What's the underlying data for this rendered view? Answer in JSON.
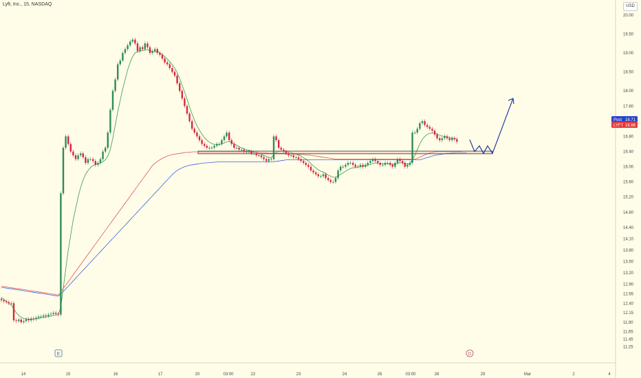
{
  "header": {
    "title": "Lyft, Inc., 15, NASDAQ",
    "currency": "USD"
  },
  "markers": {
    "earnings": "E",
    "dividend": "D"
  },
  "colors": {
    "background": "#fffde8",
    "up": "#2e8b57",
    "down": "#d7263d",
    "sma_green": "#3a9a48",
    "ma_red": "#e05050",
    "ma_blue": "#3f5fe0",
    "arrow": "#1f3aa0",
    "post_badge": "#2a42c8",
    "last_badge": "#e03b3b"
  },
  "chart_data": {
    "type": "candlestick",
    "symbol": "LYFT",
    "exchange": "NASDAQ",
    "interval": "15",
    "ylim": [
      11.1,
      20.25
    ],
    "yticks": [
      "20.00",
      "19.50",
      "19.00",
      "18.50",
      "18.00",
      "17.60",
      "17.20",
      "16.80",
      "16.40",
      "16.00",
      "15.60",
      "15.20",
      "14.80",
      "14.40",
      "14.10",
      "13.80",
      "13.50",
      "13.20",
      "12.90",
      "12.65",
      "12.40",
      "12.15",
      "11.90",
      "11.65",
      "11.45",
      "11.25"
    ],
    "xticks": [
      "14",
      "15",
      "16",
      "17",
      "20",
      "03:00",
      "22",
      "23",
      "24",
      "26",
      "03:00",
      "28",
      "29",
      "Mar",
      "2",
      "4"
    ],
    "closes": [
      12.48,
      12.45,
      12.43,
      12.4,
      12.4,
      11.95,
      11.93,
      11.97,
      11.9,
      11.93,
      11.98,
      11.95,
      12.0,
      11.98,
      12.02,
      12.05,
      12.05,
      12.08,
      12.06,
      12.1,
      12.12,
      12.15,
      12.12,
      12.1,
      15.3,
      16.5,
      16.8,
      16.6,
      16.4,
      16.3,
      16.2,
      16.3,
      16.35,
      16.25,
      16.1,
      16.2,
      16.2,
      16.15,
      16.05,
      16.1,
      16.2,
      16.4,
      16.5,
      16.9,
      17.5,
      18.0,
      18.3,
      18.7,
      18.8,
      19.0,
      19.1,
      19.2,
      19.3,
      19.35,
      19.25,
      19.05,
      19.15,
      19.1,
      19.25,
      19.15,
      19.0,
      19.05,
      19.1,
      19.0,
      18.95,
      18.85,
      18.75,
      18.7,
      18.6,
      18.5,
      18.4,
      18.2,
      18.0,
      17.8,
      17.6,
      17.4,
      17.2,
      17.0,
      16.9,
      16.8,
      16.7,
      16.6,
      16.55,
      16.5,
      16.5,
      16.5,
      16.55,
      16.6,
      16.6,
      16.7,
      16.8,
      16.9,
      16.7,
      16.6,
      16.5,
      16.5,
      16.45,
      16.45,
      16.4,
      16.4,
      16.4,
      16.35,
      16.35,
      16.3,
      16.3,
      16.25,
      16.2,
      16.15,
      16.2,
      16.2,
      16.8,
      16.7,
      16.5,
      16.45,
      16.4,
      16.35,
      16.3,
      16.3,
      16.25,
      16.25,
      16.2,
      16.15,
      16.1,
      16.05,
      16.0,
      15.9,
      15.85,
      15.8,
      15.75,
      15.75,
      15.8,
      15.7,
      15.65,
      15.6,
      15.6,
      15.7,
      15.9,
      16.0,
      16.0,
      16.05,
      16.1,
      16.1,
      16.05,
      16.0,
      16.0,
      16.05,
      16.0,
      16.05,
      16.1,
      16.15,
      16.2,
      16.15,
      16.1,
      16.05,
      16.05,
      16.1,
      16.1,
      16.05,
      16.0,
      16.1,
      16.2,
      16.15,
      16.1,
      16.0,
      16.05,
      16.1,
      16.9,
      16.9,
      17.0,
      17.15,
      17.2,
      17.1,
      17.05,
      17.0,
      16.95,
      16.85,
      16.75,
      16.7,
      16.75,
      16.8,
      16.75,
      16.7,
      16.75,
      16.72,
      16.66
    ],
    "last_price": 16.66,
    "post_price": 16.71,
    "last_label": "LYFT",
    "post_label": "Post",
    "support_zone": [
      16.34,
      16.41
    ],
    "projection": [
      [
        16.71,
        16.4
      ],
      [
        16.4,
        16.55
      ],
      [
        16.55,
        16.35
      ],
      [
        16.35,
        16.55
      ],
      [
        16.55,
        16.35
      ],
      [
        16.35,
        17.8
      ]
    ],
    "indicators": [
      {
        "type": "sma",
        "color": "#3a9a48",
        "values": [
          12.55,
          12.5,
          12.45,
          12.4,
          12.35,
          12.25,
          12.15,
          12.08,
          12.03,
          12.0,
          11.99,
          11.98,
          11.98,
          11.98,
          11.99,
          12.0,
          12.02,
          12.03,
          12.04,
          12.05,
          12.06,
          12.08,
          12.09,
          12.1,
          12.3,
          12.8,
          13.3,
          13.8,
          14.2,
          14.6,
          14.9,
          15.2,
          15.45,
          15.65,
          15.8,
          15.9,
          15.98,
          16.03,
          16.06,
          16.08,
          16.1,
          16.13,
          16.18,
          16.28,
          16.45,
          16.75,
          17.1,
          17.45,
          17.75,
          18.05,
          18.3,
          18.55,
          18.75,
          18.9,
          19.0,
          19.03,
          19.05,
          19.06,
          19.08,
          19.08,
          19.06,
          19.04,
          19.04,
          19.03,
          19.0,
          18.96,
          18.9,
          18.84,
          18.77,
          18.69,
          18.6,
          18.48,
          18.33,
          18.15,
          17.97,
          17.78,
          17.58,
          17.39,
          17.22,
          17.08,
          16.96,
          16.86,
          16.77,
          16.7,
          16.65,
          16.61,
          16.59,
          16.58,
          16.58,
          16.6,
          16.62,
          16.66,
          16.66,
          16.64,
          16.6,
          16.57,
          16.53,
          16.5,
          16.47,
          16.45,
          16.43,
          16.41,
          16.39,
          16.37,
          16.35,
          16.33,
          16.3,
          16.27,
          16.25,
          16.23,
          16.32,
          16.38,
          16.4,
          16.41,
          16.41,
          16.4,
          16.38,
          16.37,
          16.35,
          16.33,
          16.31,
          16.28,
          16.24,
          16.2,
          16.15,
          16.08,
          16.02,
          15.97,
          15.92,
          15.88,
          15.86,
          15.82,
          15.78,
          15.75,
          15.72,
          15.72,
          15.76,
          15.8,
          15.84,
          15.88,
          15.92,
          15.95,
          15.97,
          15.98,
          15.99,
          16.0,
          16.01,
          16.02,
          16.04,
          16.06,
          16.08,
          16.09,
          16.1,
          16.09,
          16.08,
          16.08,
          16.08,
          16.07,
          16.06,
          16.07,
          16.09,
          16.1,
          16.1,
          16.08,
          16.07,
          16.07,
          16.2,
          16.3,
          16.45,
          16.6,
          16.72,
          16.8,
          16.85,
          16.88,
          16.89,
          16.88,
          16.86,
          16.83,
          16.81,
          16.8,
          16.79,
          16.77,
          16.76,
          16.75,
          16.73
        ]
      },
      {
        "type": "ma",
        "color": "#e05050",
        "values": [
          12.85,
          12.84,
          12.83,
          12.82,
          12.81,
          12.8,
          12.79,
          12.78,
          12.77,
          12.76,
          12.75,
          12.74,
          12.73,
          12.72,
          12.71,
          12.7,
          12.69,
          12.68,
          12.67,
          12.66,
          12.65,
          12.64,
          12.63,
          12.62,
          12.7,
          12.79,
          12.88,
          12.97,
          13.06,
          13.15,
          13.24,
          13.33,
          13.42,
          13.51,
          13.6,
          13.69,
          13.78,
          13.87,
          13.96,
          14.05,
          14.14,
          14.23,
          14.32,
          14.41,
          14.5,
          14.59,
          14.68,
          14.77,
          14.86,
          14.95,
          15.04,
          15.13,
          15.22,
          15.31,
          15.4,
          15.49,
          15.58,
          15.67,
          15.76,
          15.85,
          15.94,
          16.03,
          16.09,
          16.14,
          16.18,
          16.22,
          16.25,
          16.28,
          16.3,
          16.32,
          16.33,
          16.34,
          16.35,
          16.36,
          16.37,
          16.38,
          16.38,
          16.39,
          16.39,
          16.39,
          16.39,
          16.39,
          16.39,
          16.39,
          16.39,
          16.39,
          16.39,
          16.39,
          16.39,
          16.39,
          16.39,
          16.39,
          16.39,
          16.39,
          16.39,
          16.39,
          16.39,
          16.39,
          16.39,
          16.39,
          16.39,
          16.38,
          16.38,
          16.38,
          16.37,
          16.37,
          16.36,
          16.36,
          16.35,
          16.35,
          16.35,
          16.35,
          16.35,
          16.35,
          16.35,
          16.34,
          16.34,
          16.34,
          16.33,
          16.33,
          16.33,
          16.32,
          16.32,
          16.31,
          16.31,
          16.3,
          16.29,
          16.28,
          16.27,
          16.26,
          16.25,
          16.24,
          16.23,
          16.22,
          16.21,
          16.2,
          16.2,
          16.2,
          16.2,
          16.2,
          16.2,
          16.2,
          16.2,
          16.2,
          16.2,
          16.2,
          16.2,
          16.2,
          16.2,
          16.2,
          16.2,
          16.2,
          16.2,
          16.2,
          16.2,
          16.2,
          16.2,
          16.2,
          16.2,
          16.2,
          16.2,
          16.2,
          16.2,
          16.2,
          16.2,
          16.2,
          16.2,
          16.2,
          16.22,
          16.25,
          16.28,
          16.31,
          16.34,
          16.36,
          16.38,
          16.39,
          16.4,
          16.4,
          16.4,
          16.4,
          16.4,
          16.4,
          16.4,
          16.4,
          16.4,
          16.4,
          16.4
        ]
      },
      {
        "type": "ma",
        "color": "#3f5fe0",
        "values": [
          12.82,
          12.81,
          12.8,
          12.79,
          12.78,
          12.77,
          12.76,
          12.75,
          12.74,
          12.73,
          12.72,
          12.71,
          12.7,
          12.69,
          12.68,
          12.67,
          12.66,
          12.65,
          12.64,
          12.63,
          12.62,
          12.61,
          12.6,
          12.59,
          12.64,
          12.71,
          12.78,
          12.85,
          12.92,
          12.99,
          13.06,
          13.13,
          13.2,
          13.27,
          13.34,
          13.41,
          13.48,
          13.55,
          13.62,
          13.69,
          13.76,
          13.83,
          13.9,
          13.97,
          14.04,
          14.11,
          14.18,
          14.25,
          14.32,
          14.39,
          14.46,
          14.53,
          14.6,
          14.67,
          14.74,
          14.81,
          14.88,
          14.95,
          15.02,
          15.09,
          15.16,
          15.23,
          15.3,
          15.37,
          15.44,
          15.51,
          15.58,
          15.65,
          15.72,
          15.79,
          15.85,
          15.9,
          15.94,
          15.97,
          16.0,
          16.02,
          16.04,
          16.05,
          16.06,
          16.07,
          16.08,
          16.09,
          16.1,
          16.1,
          16.11,
          16.11,
          16.12,
          16.12,
          16.13,
          16.13,
          16.13,
          16.13,
          16.13,
          16.13,
          16.13,
          16.13,
          16.13,
          16.13,
          16.13,
          16.13,
          16.13,
          16.13,
          16.13,
          16.13,
          16.13,
          16.13,
          16.13,
          16.13,
          16.13,
          16.13,
          16.13,
          16.14,
          16.15,
          16.16,
          16.17,
          16.18,
          16.18,
          16.18,
          16.18,
          16.18,
          16.18,
          16.18,
          16.18,
          16.18,
          16.18,
          16.18,
          16.18,
          16.18,
          16.18,
          16.18,
          16.18,
          16.18,
          16.18,
          16.18,
          16.18,
          16.18,
          16.18,
          16.18,
          16.18,
          16.18,
          16.18,
          16.18,
          16.18,
          16.18,
          16.18,
          16.18,
          16.18,
          16.18,
          16.18,
          16.18,
          16.18,
          16.18,
          16.18,
          16.18,
          16.18,
          16.18,
          16.18,
          16.18,
          16.18,
          16.18,
          16.18,
          16.18,
          16.18,
          16.18,
          16.18,
          16.18,
          16.18,
          16.18,
          16.18,
          16.18,
          16.2,
          16.22,
          16.24,
          16.26,
          16.28,
          16.3,
          16.31,
          16.32,
          16.33,
          16.34,
          16.35,
          16.35,
          16.36,
          16.36,
          16.37,
          16.37,
          16.37,
          16.37,
          16.37
        ]
      }
    ]
  }
}
